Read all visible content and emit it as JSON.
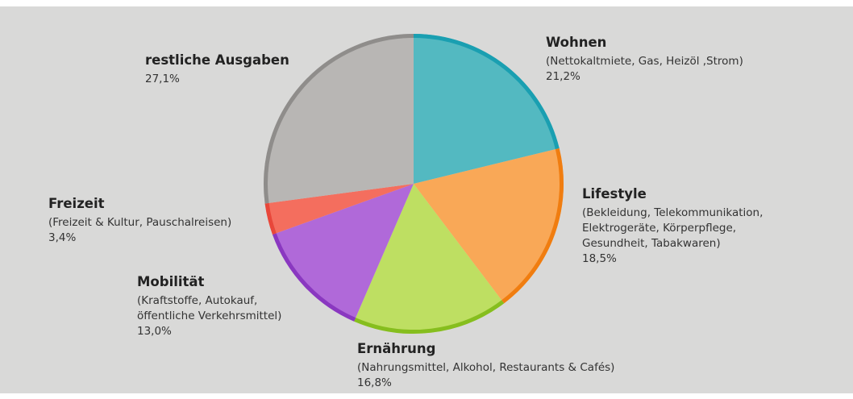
{
  "chart_data": {
    "type": "pie",
    "categories": [
      "Wohnen",
      "Lifestyle",
      "Ernährung",
      "Mobilität",
      "Freizeit",
      "restliche Ausgaben"
    ],
    "descriptions": [
      [
        "(Nettokaltmiete, Gas, Heizöl ,Strom)"
      ],
      [
        "(Bekleidung, Telekommunikation,",
        "Elektrogeräte, Körperpflege,",
        "Gesundheit, Tabakwaren)"
      ],
      [
        "(Nahrungsmittel, Alkohol, Restaurants & Cafés)"
      ],
      [
        "(Kraftstoffe, Autokauf,",
        "öffentliche Verkehrsmittel)"
      ],
      [
        "(Freizeit & Kultur, Pauschalreisen)"
      ],
      []
    ],
    "values": [
      21.2,
      18.5,
      16.8,
      13.0,
      3.4,
      27.1
    ],
    "value_labels": [
      "21,2%",
      "18,5%",
      "16,8%",
      "13,0%",
      "3,4%",
      "27,1%"
    ],
    "colors": [
      "#53b9c1",
      "#f9a857",
      "#bedf62",
      "#b069d9",
      "#f46e5e",
      "#b8b6b4"
    ],
    "rim_colors": [
      "#1a9fb1",
      "#f07d10",
      "#86be1e",
      "#8a38c0",
      "#e8473a",
      "#8f8d8b"
    ]
  }
}
